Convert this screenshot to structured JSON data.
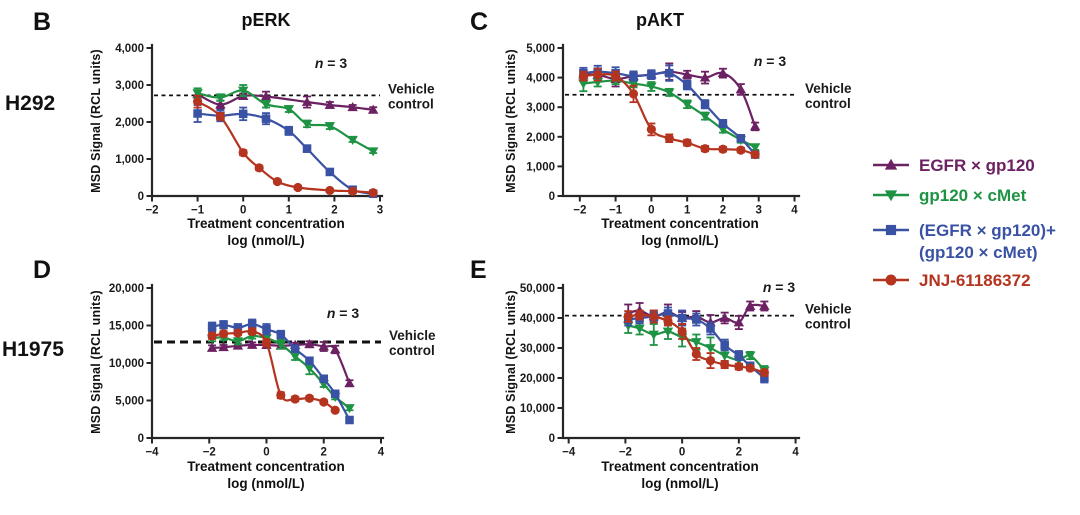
{
  "figure": {
    "background": "#ffffff",
    "row_labels": [
      {
        "text": "H292"
      },
      {
        "text": "H1975"
      }
    ]
  },
  "legend": {
    "items": [
      {
        "label": "EGFR × gp120",
        "label2": "",
        "color": "#6b2162",
        "marker": "triangle-up"
      },
      {
        "label": "gp120 × cMet",
        "label2": "",
        "color": "#1f9344",
        "marker": "triangle-down"
      },
      {
        "label": "(EGFR × gp120)+",
        "label2": "(gp120 × cMet)",
        "color": "#3a52a4",
        "marker": "square"
      },
      {
        "label": "JNJ-61186372",
        "label2": "",
        "color": "#b5341f",
        "marker": "circle"
      }
    ]
  },
  "chart_data": [
    {
      "id": "B",
      "type": "scatter",
      "title": "pERK",
      "cell_line": "H292",
      "n_label": "n = 3",
      "vehicle_label_line1": "Vehicle",
      "vehicle_label_line2": "control",
      "vehicle_y": 2720,
      "ylabel": "MSD Signal (RCL units)",
      "xlabel_line1": "Treatment concentration",
      "xlabel_line2": "log (nmol/L)",
      "xlim": [
        -2,
        3
      ],
      "xticks": [
        -2,
        -1,
        0,
        1,
        2,
        3
      ],
      "xtick_labels": [
        "−2",
        "−1",
        "0",
        "1",
        "2",
        "3"
      ],
      "ylim": [
        0,
        4000
      ],
      "yticks": [
        0,
        1000,
        2000,
        3000,
        4000
      ],
      "ytick_labels": [
        "0",
        "1,000",
        "2,000",
        "3,000",
        "4,000"
      ],
      "series": [
        {
          "name": "EGFR × gp120",
          "x": [
            -1,
            -0.5,
            0,
            0.5,
            1.4,
            1.9,
            2.4,
            2.85
          ],
          "y": [
            2750,
            2470,
            2700,
            2690,
            2540,
            2460,
            2400,
            2330
          ],
          "err": [
            100,
            110,
            70,
            130,
            150,
            80,
            60,
            70
          ]
        },
        {
          "name": "gp120 × cMet",
          "x": [
            -1,
            -0.5,
            0,
            0.5,
            1,
            1.4,
            1.9,
            2.4,
            2.85
          ],
          "y": [
            2780,
            2660,
            2850,
            2480,
            2350,
            1950,
            1890,
            1520,
            1210
          ],
          "err": [
            130,
            90,
            150,
            90,
            80,
            90,
            80,
            60,
            50
          ]
        },
        {
          "name": "(EGFR × gp120)+(gp120 × cMet)",
          "x": [
            -1,
            -0.5,
            0,
            0.5,
            1,
            1.4,
            1.9,
            2.4,
            2.85
          ],
          "y": [
            2230,
            2170,
            2220,
            2090,
            1760,
            1280,
            650,
            170,
            60
          ],
          "err": [
            230,
            150,
            170,
            150,
            110,
            90,
            70,
            50,
            40
          ]
        },
        {
          "name": "JNJ-61186372",
          "x": [
            -1,
            -0.5,
            0,
            0.35,
            0.75,
            1.2,
            1.9,
            2.4,
            2.85
          ],
          "y": [
            2550,
            2150,
            1170,
            760,
            390,
            230,
            150,
            130,
            90
          ],
          "err": [
            160,
            90,
            70,
            60,
            50,
            40,
            30,
            30,
            25
          ]
        }
      ]
    },
    {
      "id": "C",
      "type": "scatter",
      "title": "pAKT",
      "cell_line": "H292",
      "n_label": "n = 3",
      "vehicle_label_line1": "Vehicle",
      "vehicle_label_line2": "control",
      "vehicle_y": 3420,
      "ylabel": "MSD Signal (RCL units)",
      "xlabel_line1": "Treatment concentration",
      "xlabel_line2": "log (nmol/L)",
      "xlim": [
        -2.47,
        4.07
      ],
      "xticks": [
        -2,
        -1,
        0,
        1,
        2,
        3,
        4
      ],
      "xtick_labels": [
        "−2",
        "−1",
        "0",
        "1",
        "2",
        "3",
        "4"
      ],
      "ylim": [
        0,
        5000
      ],
      "yticks": [
        0,
        1000,
        2000,
        3000,
        4000,
        5000
      ],
      "ytick_labels": [
        "0",
        "1,000",
        "2,000",
        "3,000",
        "4,000",
        "5,000"
      ],
      "series": [
        {
          "name": "EGFR × gp120",
          "x": [
            -1.9,
            -1.5,
            -1,
            -0.5,
            0,
            0.5,
            1,
            1.5,
            2,
            2.5,
            2.9
          ],
          "y": [
            4100,
            4100,
            3950,
            4050,
            4100,
            4200,
            4100,
            4000,
            4150,
            3600,
            2350
          ],
          "err": [
            160,
            180,
            250,
            150,
            120,
            280,
            130,
            200,
            150,
            180,
            130
          ]
        },
        {
          "name": "gp120 × cMet",
          "x": [
            -1.9,
            -1.5,
            -1,
            -0.5,
            0,
            0.5,
            1,
            1.5,
            2,
            2.5,
            2.9
          ],
          "y": [
            3800,
            3850,
            3900,
            3800,
            3700,
            3500,
            3100,
            2700,
            2250,
            1900,
            1650
          ],
          "err": [
            260,
            150,
            120,
            130,
            150,
            120,
            130,
            120,
            110,
            100,
            90
          ]
        },
        {
          "name": "(EGFR × gp120)+(gp120 × cMet)",
          "x": [
            -1.9,
            -1.5,
            -1,
            -0.5,
            0,
            0.5,
            1,
            1.5,
            2,
            2.5,
            2.9
          ],
          "y": [
            4150,
            4200,
            4150,
            4050,
            4100,
            4150,
            3750,
            3100,
            2450,
            1950,
            1400
          ],
          "err": [
            180,
            200,
            200,
            160,
            150,
            260,
            150,
            140,
            120,
            100,
            90
          ]
        },
        {
          "name": "JNJ-61186372",
          "x": [
            -1.9,
            -1.5,
            -1,
            -0.5,
            0,
            0.5,
            1,
            1.5,
            2,
            2.5,
            2.9
          ],
          "y": [
            4050,
            4100,
            4050,
            3450,
            2250,
            1950,
            1800,
            1600,
            1580,
            1550,
            1400
          ],
          "err": [
            150,
            200,
            160,
            280,
            200,
            130,
            100,
            90,
            80,
            80,
            80
          ]
        }
      ]
    },
    {
      "id": "D",
      "type": "scatter",
      "title": "",
      "cell_line": "H1975",
      "n_label": "n = 3",
      "vehicle_label_line1": "Vehicle",
      "vehicle_label_line2": "control",
      "vehicle_y": 12800,
      "ylabel": "MSD Signal (RCL units)",
      "xlabel_line1": "Treatment concentration",
      "xlabel_line2": "log (nmol/L)",
      "xlim": [
        -4,
        4
      ],
      "xticks": [
        -4,
        -2,
        0,
        2,
        4
      ],
      "xtick_labels": [
        "−4",
        "−2",
        "0",
        "2",
        "4"
      ],
      "ylim": [
        0,
        20000
      ],
      "yticks": [
        0,
        5000,
        10000,
        15000,
        20000
      ],
      "ytick_labels": [
        "0",
        "5,000",
        "10,000",
        "15,000",
        "20,000"
      ],
      "series": [
        {
          "name": "EGFR × gp120",
          "x": [
            -1.9,
            -1.5,
            -1,
            -0.5,
            0,
            0.5,
            1,
            1.5,
            2,
            2.4,
            2.9
          ],
          "y": [
            12000,
            12100,
            12300,
            12400,
            12400,
            12300,
            12400,
            12500,
            12200,
            11800,
            7300
          ],
          "err": [
            350,
            300,
            300,
            350,
            400,
            350,
            300,
            400,
            600,
            500,
            400
          ]
        },
        {
          "name": "gp120 × cMet",
          "x": [
            -1.9,
            -1.5,
            -1,
            -0.5,
            0,
            0.5,
            1,
            1.5,
            2,
            2.4,
            2.9
          ],
          "y": [
            13300,
            13400,
            12900,
            13600,
            13300,
            12500,
            10900,
            9300,
            7200,
            5500,
            4000
          ],
          "err": [
            400,
            350,
            400,
            350,
            700,
            600,
            500,
            800,
            400,
            350,
            300
          ]
        },
        {
          "name": "(EGFR × gp120)+(gp120 × cMet)",
          "x": [
            -1.9,
            -1.5,
            -1,
            -0.5,
            0,
            0.5,
            1,
            1.5,
            2,
            2.4,
            2.9
          ],
          "y": [
            14800,
            15100,
            14700,
            15200,
            14500,
            13800,
            11900,
            10300,
            7900,
            5900,
            2400
          ],
          "err": [
            600,
            500,
            500,
            600,
            700,
            500,
            400,
            400,
            350,
            300,
            250
          ]
        },
        {
          "name": "JNJ-61186372",
          "x": [
            -1.9,
            -1.5,
            -1,
            -0.5,
            0,
            0.5,
            1,
            1.5,
            2,
            2.4
          ],
          "y": [
            13600,
            13900,
            14000,
            14200,
            12700,
            5700,
            5200,
            5300,
            4800,
            3700
          ],
          "err": [
            400,
            350,
            300,
            350,
            500,
            400,
            300,
            300,
            250,
            200
          ]
        }
      ]
    },
    {
      "id": "E",
      "type": "scatter",
      "title": "",
      "cell_line": "H1975",
      "n_label": "n = 3",
      "vehicle_label_line1": "Vehicle",
      "vehicle_label_line2": "control",
      "vehicle_y": 40800,
      "ylabel": "MSD Signal (RCL units)",
      "xlabel_line1": "Treatment concentration",
      "xlabel_line2": "log (nmol/L)",
      "xlim": [
        -4.2,
        4.05
      ],
      "xticks": [
        -4,
        -2,
        0,
        2,
        4
      ],
      "xtick_labels": [
        "−4",
        "−2",
        "0",
        "2",
        "4"
      ],
      "ylim": [
        0,
        50000
      ],
      "yticks": [
        0,
        10000,
        20000,
        30000,
        40000,
        50000
      ],
      "ytick_labels": [
        "0",
        "10,000",
        "20,000",
        "30,000",
        "40,000",
        "50,000"
      ],
      "series": [
        {
          "name": "EGFR × gp120",
          "x": [
            -1.9,
            -1.5,
            -1,
            -0.5,
            0,
            0.5,
            1,
            1.5,
            2,
            2.4,
            2.9
          ],
          "y": [
            41500,
            42500,
            40500,
            42000,
            40000,
            40500,
            38500,
            40000,
            38500,
            44000,
            44000
          ],
          "err": [
            3000,
            2500,
            2000,
            2500,
            2000,
            1800,
            2500,
            1800,
            2200,
            1500,
            1500
          ]
        },
        {
          "name": "gp120 × cMet",
          "x": [
            -1.9,
            -1.5,
            -1,
            -0.5,
            0,
            0.5,
            1,
            1.5,
            2,
            2.4,
            2.9
          ],
          "y": [
            37500,
            36500,
            34500,
            35500,
            33500,
            32000,
            30000,
            27500,
            26000,
            27500,
            22500
          ],
          "err": [
            2500,
            2000,
            3500,
            2500,
            3000,
            2500,
            3500,
            2000,
            1500,
            1200,
            1500
          ]
        },
        {
          "name": "(EGFR × gp120)+(gp120 × cMet)",
          "x": [
            -1.9,
            -1.5,
            -1,
            -0.5,
            0,
            0.5,
            1,
            1.5,
            2,
            2.4,
            2.9
          ],
          "y": [
            39500,
            40000,
            40500,
            41500,
            40000,
            39500,
            36500,
            31000,
            27500,
            24000,
            20000
          ],
          "err": [
            2000,
            1800,
            1500,
            2000,
            2500,
            2000,
            2000,
            1800,
            1500,
            1200,
            1500
          ]
        },
        {
          "name": "JNJ-61186372",
          "x": [
            -1.9,
            -1.5,
            -1,
            -0.5,
            0,
            0.5,
            1,
            1.5,
            2,
            2.4,
            2.9
          ],
          "y": [
            40500,
            41000,
            40500,
            39000,
            35500,
            28000,
            25800,
            24500,
            23800,
            23300,
            21800
          ],
          "err": [
            1800,
            1500,
            2000,
            1500,
            2500,
            2000,
            2500,
            1200,
            1000,
            800,
            1000
          ]
        }
      ]
    }
  ]
}
